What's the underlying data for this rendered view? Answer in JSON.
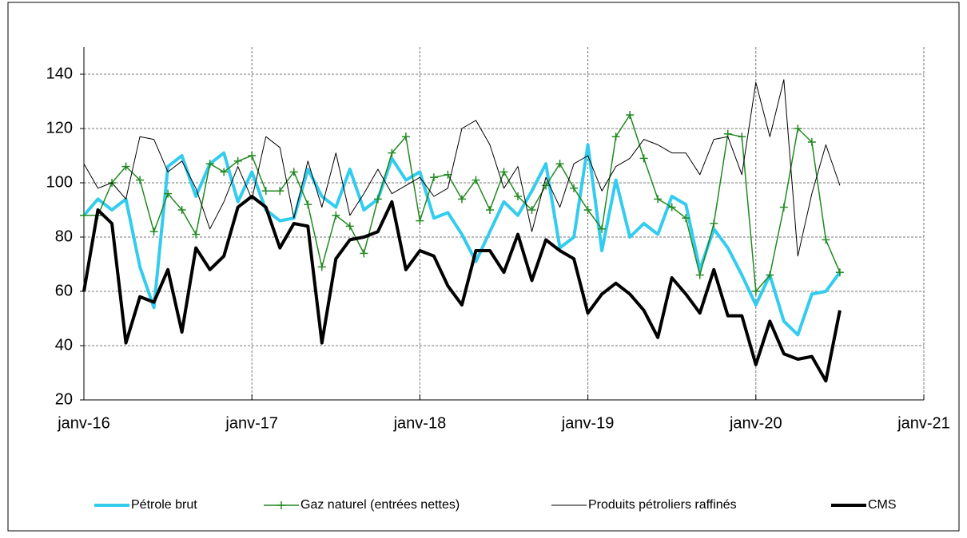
{
  "chart_data": {
    "type": "line",
    "x": [
      "2016-01",
      "2016-02",
      "2016-03",
      "2016-04",
      "2016-05",
      "2016-06",
      "2016-07",
      "2016-08",
      "2016-09",
      "2016-10",
      "2016-11",
      "2016-12",
      "2017-01",
      "2017-02",
      "2017-03",
      "2017-04",
      "2017-05",
      "2017-06",
      "2017-07",
      "2017-08",
      "2017-09",
      "2017-10",
      "2017-11",
      "2017-12",
      "2018-01",
      "2018-02",
      "2018-03",
      "2018-04",
      "2018-05",
      "2018-06",
      "2018-07",
      "2018-08",
      "2018-09",
      "2018-10",
      "2018-11",
      "2018-12",
      "2019-01",
      "2019-02",
      "2019-03",
      "2019-04",
      "2019-05",
      "2019-06",
      "2019-07",
      "2019-08",
      "2019-09",
      "2019-10",
      "2019-11",
      "2019-12",
      "2020-01",
      "2020-02",
      "2020-03",
      "2020-04",
      "2020-05",
      "2020-06",
      "2020-07"
    ],
    "xlim": [
      "2016-01",
      "2021-01"
    ],
    "xticks": [
      {
        "value": "2016-01",
        "label": "janv-16"
      },
      {
        "value": "2017-01",
        "label": "janv-17"
      },
      {
        "value": "2018-01",
        "label": "janv-18"
      },
      {
        "value": "2019-01",
        "label": "janv-19"
      },
      {
        "value": "2020-01",
        "label": "janv-20"
      },
      {
        "value": "2021-01",
        "label": "janv-21"
      }
    ],
    "ylim": [
      20,
      150
    ],
    "yticks": [
      20,
      40,
      60,
      80,
      100,
      120,
      140
    ],
    "grid": true,
    "legend": "bottom",
    "series": [
      {
        "name": "Pétrole brut",
        "color": "#33ccee",
        "line_width": 4,
        "values": [
          88,
          94,
          90,
          94,
          69,
          54,
          106,
          110,
          95,
          107,
          111,
          93,
          104,
          90,
          86,
          87,
          105,
          95,
          91,
          105,
          90,
          94,
          109,
          101,
          104,
          87,
          89,
          81,
          71,
          82,
          93,
          88,
          97,
          107,
          76,
          80,
          114,
          75,
          101,
          80,
          85,
          81,
          95,
          92,
          68,
          83,
          76,
          66,
          55,
          66,
          49,
          44,
          59,
          60,
          67
        ]
      },
      {
        "name": "Gaz naturel (entrées nettes)",
        "color": "#228822",
        "line_width": 1.5,
        "marker": "plus",
        "values": [
          88,
          88,
          100,
          106,
          101,
          82,
          96,
          90,
          81,
          107,
          104,
          108,
          110,
          97,
          97,
          104,
          92,
          69,
          88,
          84,
          74,
          94,
          111,
          117,
          86,
          102,
          103,
          94,
          101,
          90,
          104,
          95,
          90,
          99,
          107,
          98,
          90,
          83,
          117,
          125,
          109,
          94,
          91,
          87,
          66,
          85,
          118,
          117,
          60,
          66,
          91,
          120,
          115,
          79,
          67
        ]
      },
      {
        "name": "Produits pétroliers raffinés",
        "color": "#000000",
        "line_width": 1,
        "values": [
          107,
          98,
          100,
          94,
          117,
          116,
          104,
          108,
          98,
          83,
          93,
          106,
          94,
          117,
          113,
          87,
          108,
          91,
          111,
          88,
          96,
          105,
          96,
          99,
          102,
          95,
          98,
          120,
          123,
          114,
          98,
          106,
          82,
          102,
          91,
          107,
          110,
          97,
          106,
          109,
          116,
          114,
          111,
          111,
          103,
          116,
          117,
          103,
          137,
          117,
          138,
          73,
          96,
          114,
          99
        ]
      },
      {
        "name": "CMS",
        "color": "#000000",
        "line_width": 4,
        "values": [
          60,
          90,
          85,
          41,
          58,
          56,
          68,
          45,
          76,
          68,
          73,
          91,
          95,
          91,
          76,
          85,
          84,
          41,
          72,
          79,
          80,
          82,
          93,
          68,
          75,
          73,
          62,
          55,
          75,
          75,
          67,
          81,
          64,
          79,
          75,
          72,
          52,
          59,
          63,
          59,
          53,
          43,
          65,
          59,
          52,
          68,
          51,
          51,
          33,
          49,
          37,
          35,
          36,
          27,
          53
        ]
      }
    ]
  }
}
